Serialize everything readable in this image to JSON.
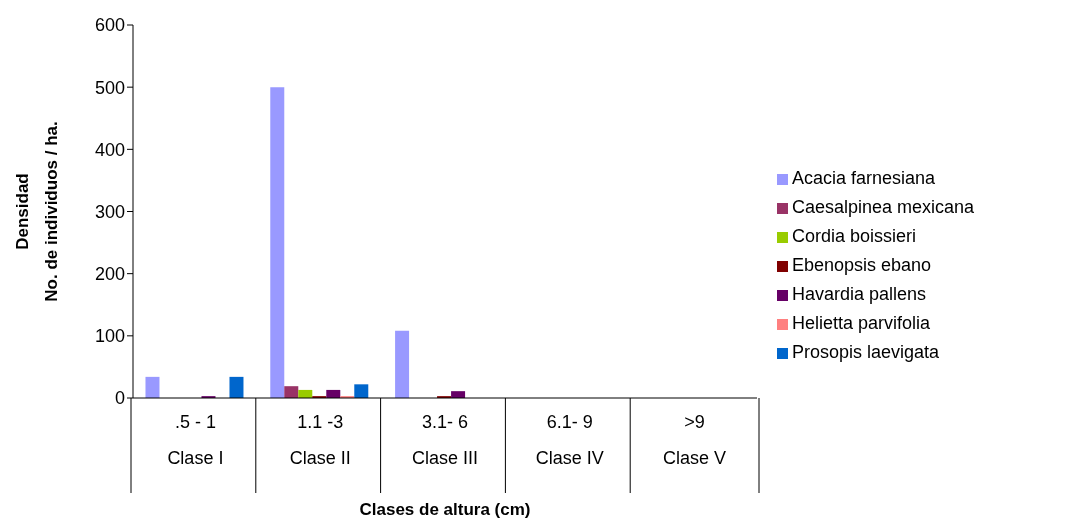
{
  "chart_data": {
    "type": "bar",
    "xlabel": "Clases de altura (cm)",
    "ylabel": "Densidad\nNo. de individuos / ha.",
    "categories": [
      ".5 - 1\nClase I",
      "1.1 -3\nClase II",
      "3.1- 6\nClase III",
      "6.1- 9\nClase IV",
      ">9\nClase V"
    ],
    "series": [
      {
        "name": "Acacia farnesiana",
        "color": "#9999ff",
        "values": [
          34,
          500,
          108,
          0,
          0
        ]
      },
      {
        "name": "Caesalpinea mexicana",
        "color": "#993366",
        "values": [
          0,
          19,
          0,
          0,
          0
        ]
      },
      {
        "name": "Cordia boissieri",
        "color": "#99cc00",
        "values": [
          0,
          13,
          0,
          0,
          0
        ]
      },
      {
        "name": "Ebenopsis ebano",
        "color": "#800000",
        "values": [
          0,
          3,
          3,
          0,
          0
        ]
      },
      {
        "name": "Havardia pallens",
        "color": "#660066",
        "values": [
          3,
          13,
          11,
          0,
          0
        ]
      },
      {
        "name": "Helietta parvifolia",
        "color": "#ff8080",
        "values": [
          0,
          3,
          0,
          0,
          0
        ]
      },
      {
        "name": "Prosopis laevigata",
        "color": "#0066cc",
        "values": [
          34,
          22,
          0,
          0,
          0
        ]
      }
    ],
    "ylim": [
      0,
      600
    ],
    "yticks": [
      0,
      100,
      200,
      300,
      400,
      500,
      600
    ],
    "legend": "right"
  }
}
